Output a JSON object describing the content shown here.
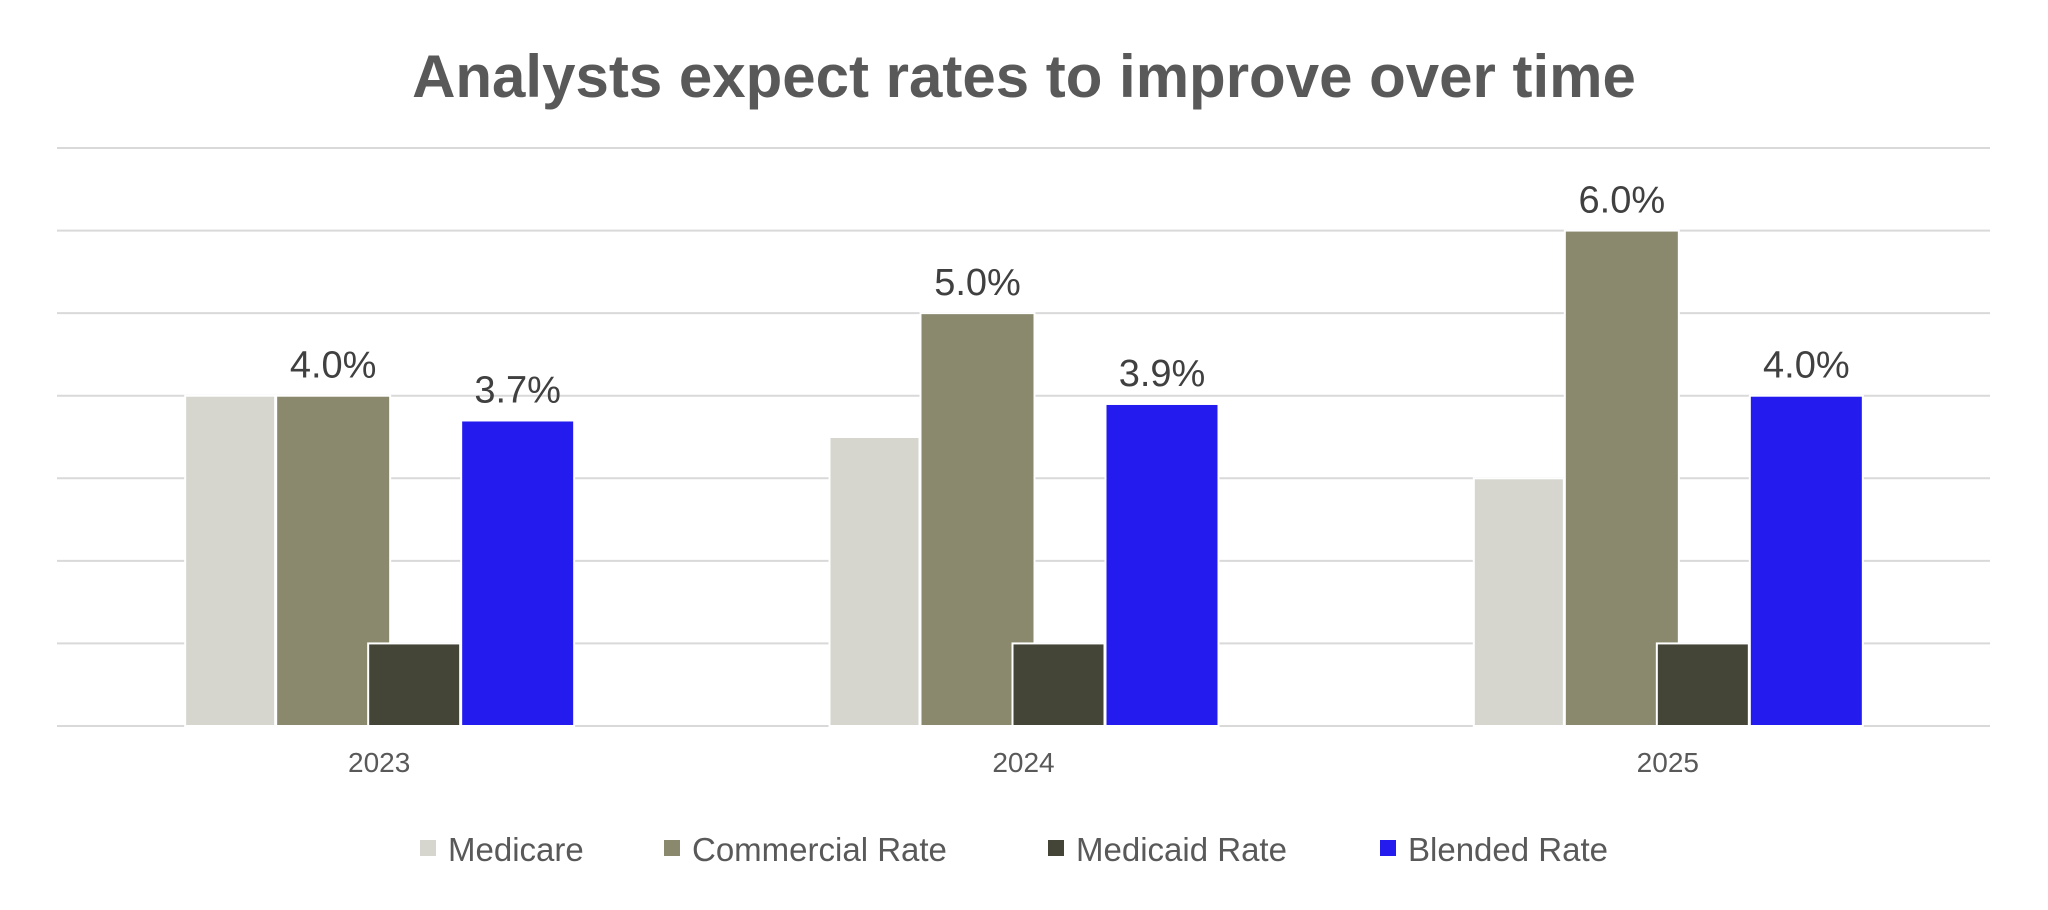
{
  "chart_data": {
    "type": "bar",
    "title": "Analysts expect rates to improve over time",
    "xlabel": "",
    "ylabel": "",
    "categories": [
      "2023",
      "2024",
      "2025"
    ],
    "ylim": [
      0,
      7
    ],
    "grid": true,
    "legend_position": "bottom",
    "series": [
      {
        "name": "Medicare",
        "values": [
          4.0,
          3.5,
          3.0
        ],
        "color": "#D6D6CE",
        "show_labels": false
      },
      {
        "name": "Commercial Rate",
        "values": [
          4.0,
          5.0,
          6.0
        ],
        "color": "#8A896E",
        "show_labels": true,
        "labels": [
          "4.0%",
          "5.0%",
          "6.0%"
        ]
      },
      {
        "name": "Medicaid Rate",
        "values": [
          1.0,
          1.0,
          1.0
        ],
        "color": "#454537",
        "show_labels": false
      },
      {
        "name": "Blended Rate",
        "values": [
          3.7,
          3.9,
          4.0
        ],
        "color": "#241CEE",
        "show_labels": true,
        "labels": [
          "3.7%",
          "3.9%",
          "4.0%"
        ]
      }
    ]
  }
}
